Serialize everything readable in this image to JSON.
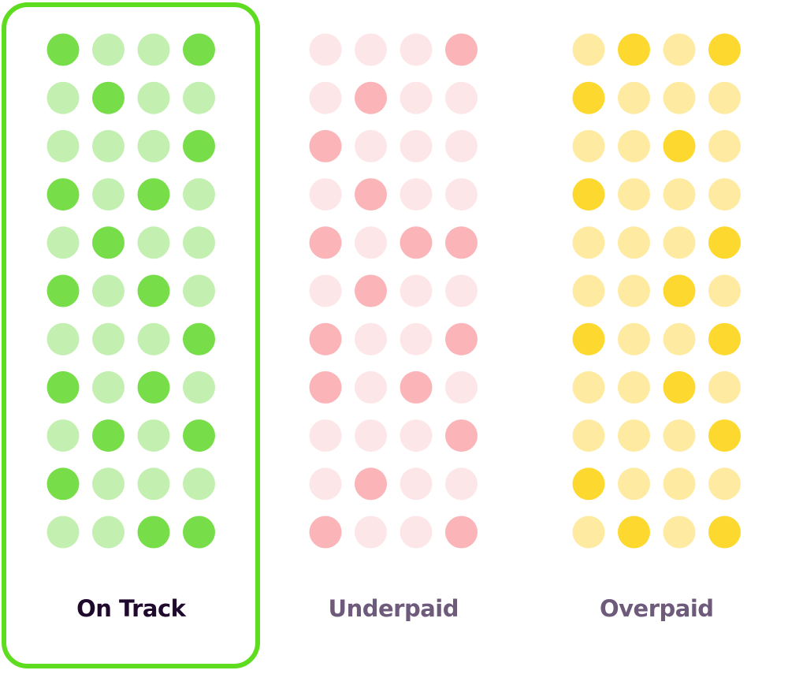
{
  "groups": [
    {
      "label": "On Track",
      "selected": true,
      "dark_color": "#77de4a",
      "light_color": "#c3f0b0",
      "rows": [
        [
          1,
          0,
          0,
          1
        ],
        [
          0,
          1,
          0,
          0
        ],
        [
          0,
          0,
          0,
          1
        ],
        [
          1,
          0,
          1,
          0
        ],
        [
          0,
          1,
          0,
          0
        ],
        [
          1,
          0,
          1,
          0
        ],
        [
          0,
          0,
          0,
          1
        ],
        [
          1,
          0,
          1,
          0
        ],
        [
          0,
          1,
          0,
          1
        ],
        [
          1,
          0,
          0,
          0
        ],
        [
          0,
          0,
          1,
          1
        ]
      ]
    },
    {
      "label": "Underpaid",
      "selected": false,
      "dark_color": "#fbb4b8",
      "light_color": "#fde6e8",
      "rows": [
        [
          0,
          0,
          0,
          1
        ],
        [
          0,
          1,
          0,
          0
        ],
        [
          1,
          0,
          0,
          0
        ],
        [
          0,
          1,
          0,
          0
        ],
        [
          1,
          0,
          1,
          1
        ],
        [
          0,
          1,
          0,
          0
        ],
        [
          1,
          0,
          0,
          1
        ],
        [
          1,
          0,
          1,
          0
        ],
        [
          0,
          0,
          0,
          1
        ],
        [
          0,
          1,
          0,
          0
        ],
        [
          1,
          0,
          0,
          1
        ]
      ]
    },
    {
      "label": "Overpaid",
      "selected": false,
      "dark_color": "#fdd82e",
      "light_color": "#feeba1",
      "rows": [
        [
          0,
          1,
          0,
          1
        ],
        [
          1,
          0,
          0,
          0
        ],
        [
          0,
          0,
          1,
          0
        ],
        [
          1,
          0,
          0,
          0
        ],
        [
          0,
          0,
          0,
          1
        ],
        [
          0,
          0,
          1,
          0
        ],
        [
          1,
          0,
          0,
          1
        ],
        [
          0,
          0,
          1,
          0
        ],
        [
          0,
          0,
          0,
          1
        ],
        [
          1,
          0,
          0,
          0
        ],
        [
          0,
          1,
          0,
          1
        ]
      ]
    }
  ]
}
